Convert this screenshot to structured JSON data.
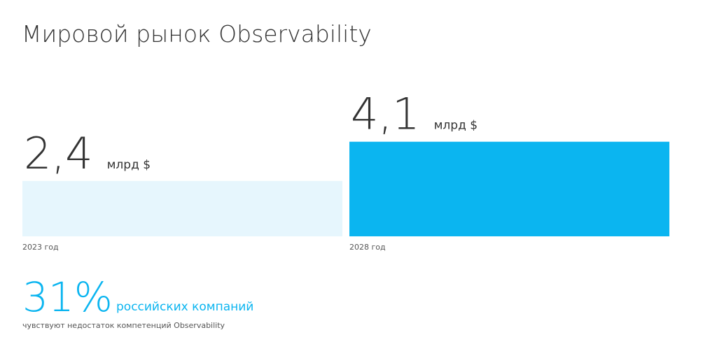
{
  "chart_data": {
    "type": "bar",
    "title": "Мировой рынок Observability",
    "categories": [
      "2023 год",
      "2028 год"
    ],
    "values": [
      2.4,
      4.1
    ],
    "value_labels": [
      "2,4",
      "4,1"
    ],
    "value_unit": "млрд $",
    "colors": [
      "#e6f6fd",
      "#0bb5f0"
    ]
  },
  "stat": {
    "value": 31,
    "value_label": "31%",
    "label": "российских компаний",
    "caption": "чувствуют недостаток компетенций Observability",
    "color": "#0bb5f0"
  }
}
